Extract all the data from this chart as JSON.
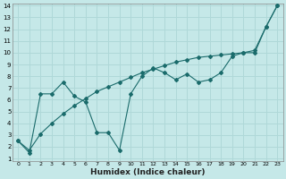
{
  "xlabel": "Humidex (Indice chaleur)",
  "bg_color": "#c5e8e8",
  "line_color": "#1a6b6b",
  "grid_color": "#afd8d8",
  "xlim": [
    -0.5,
    23.5
  ],
  "ylim": [
    0.8,
    14.2
  ],
  "xticks": [
    0,
    1,
    2,
    3,
    4,
    5,
    6,
    7,
    8,
    9,
    10,
    11,
    12,
    13,
    14,
    15,
    16,
    17,
    18,
    19,
    20,
    21,
    22,
    23
  ],
  "yticks": [
    1,
    2,
    3,
    4,
    5,
    6,
    7,
    8,
    9,
    10,
    11,
    12,
    13,
    14
  ],
  "line1_x": [
    0,
    1,
    2,
    3,
    4,
    5,
    6,
    7,
    8,
    9,
    10,
    11,
    12,
    13,
    14,
    15,
    16,
    17,
    18,
    19,
    20,
    21,
    22,
    23
  ],
  "line1_y": [
    2.5,
    1.5,
    6.5,
    6.5,
    7.5,
    6.3,
    5.8,
    3.2,
    3.2,
    1.7,
    6.5,
    8.0,
    8.7,
    8.3,
    7.7,
    8.2,
    7.5,
    7.7,
    8.3,
    9.7,
    10.0,
    10.0,
    12.2,
    14.0
  ],
  "line2_x": [
    0,
    1,
    2,
    3,
    4,
    5,
    6,
    7,
    8,
    9,
    10,
    11,
    12,
    13,
    14,
    15,
    16,
    17,
    18,
    19,
    20,
    21,
    22,
    23
  ],
  "line2_y": [
    2.5,
    1.7,
    3.1,
    4.0,
    4.8,
    5.5,
    6.1,
    6.7,
    7.1,
    7.5,
    7.9,
    8.3,
    8.6,
    8.9,
    9.2,
    9.4,
    9.6,
    9.7,
    9.8,
    9.9,
    10.0,
    10.2,
    12.2,
    14.0
  ]
}
